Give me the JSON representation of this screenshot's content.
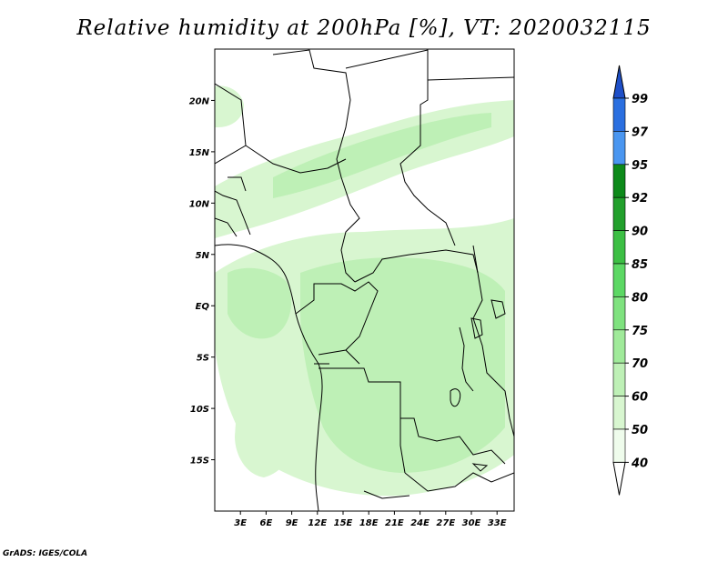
{
  "title": "Relative humidity at 200hPa [%], VT: 2020032115",
  "credit": "GrADS: IGES/COLA",
  "map": {
    "region": "Central Africa",
    "lon_range": [
      0,
      35
    ],
    "lat_range": [
      -20,
      25
    ],
    "lat_labels": [
      "20N",
      "15N",
      "10N",
      "5N",
      "EQ",
      "5S",
      "10S",
      "15S"
    ],
    "lon_labels": [
      "3E",
      "6E",
      "9E",
      "12E",
      "15E",
      "18E",
      "21E",
      "24E",
      "27E",
      "30E",
      "33E"
    ]
  },
  "colorbar": {
    "levels": [
      "99",
      "97",
      "95",
      "92",
      "90",
      "85",
      "80",
      "75",
      "70",
      "60",
      "50",
      "40"
    ],
    "colors": [
      "#1e4fc8",
      "#2a6fe0",
      "#4a96f0",
      "#0d8a1a",
      "#22a02c",
      "#3cbf44",
      "#5cd864",
      "#7fe27f",
      "#a0ea9a",
      "#bef0b6",
      "#d8f6d0",
      "#effcec",
      "#ffffff"
    ]
  }
}
